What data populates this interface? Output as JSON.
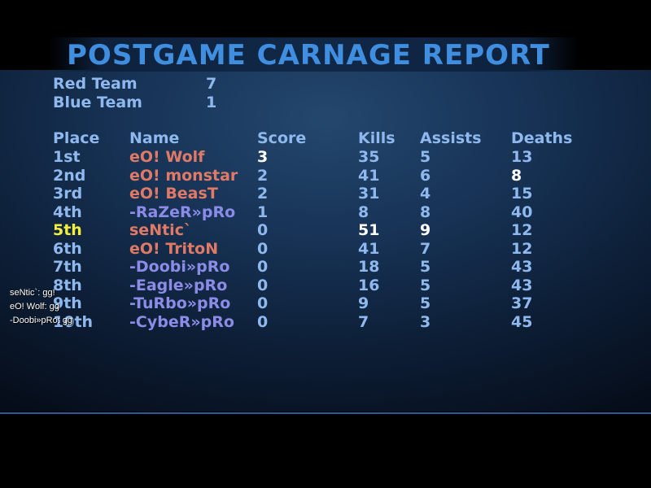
{
  "title": "POSTGAME CARNAGE REPORT",
  "teams": [
    {
      "name": "Red Team",
      "score": "7"
    },
    {
      "name": "Blue Team",
      "score": "1"
    }
  ],
  "headers": {
    "place": "Place",
    "name": "Name",
    "score": "Score",
    "kills": "Kills",
    "assists": "Assists",
    "deaths": "Deaths"
  },
  "rows": [
    {
      "place": "1st",
      "name": "eO! Wolf",
      "score": "3",
      "kills": "35",
      "assists": "5",
      "deaths": "13",
      "team": "red",
      "highlight": false,
      "best": [
        "score"
      ]
    },
    {
      "place": "2nd",
      "name": "eO! monstar",
      "score": "2",
      "kills": "41",
      "assists": "6",
      "deaths": "8",
      "team": "red",
      "highlight": false,
      "best": [
        "deaths"
      ]
    },
    {
      "place": "3rd",
      "name": "eO! BeasT",
      "score": "2",
      "kills": "31",
      "assists": "4",
      "deaths": "15",
      "team": "red",
      "highlight": false,
      "best": []
    },
    {
      "place": "4th",
      "name": "-RaZeR»pRo",
      "score": "1",
      "kills": "8",
      "assists": "8",
      "deaths": "40",
      "team": "blue",
      "highlight": false,
      "best": []
    },
    {
      "place": "5th",
      "name": "seNtic`",
      "score": "0",
      "kills": "51",
      "assists": "9",
      "deaths": "12",
      "team": "red",
      "highlight": true,
      "best": [
        "kills",
        "assists"
      ]
    },
    {
      "place": "6th",
      "name": "eO! TritoN",
      "score": "0",
      "kills": "41",
      "assists": "7",
      "deaths": "12",
      "team": "red",
      "highlight": false,
      "best": []
    },
    {
      "place": "7th",
      "name": "-Doobi»pRo",
      "score": "0",
      "kills": "18",
      "assists": "5",
      "deaths": "43",
      "team": "blue",
      "highlight": false,
      "best": []
    },
    {
      "place": "8th",
      "name": "-Eagle»pRo",
      "score": "0",
      "kills": "16",
      "assists": "5",
      "deaths": "43",
      "team": "blue",
      "highlight": false,
      "best": []
    },
    {
      "place": "9th",
      "name": "-TuRbo»pRo",
      "score": "0",
      "kills": "9",
      "assists": "5",
      "deaths": "37",
      "team": "blue",
      "highlight": false,
      "best": []
    },
    {
      "place": "10th",
      "name": "-CybeR»pRo",
      "score": "0",
      "kills": "7",
      "assists": "3",
      "deaths": "45",
      "team": "blue",
      "highlight": false,
      "best": []
    }
  ],
  "chat": [
    "seNtic`: gg!",
    "eO! Wolf: gg",
    "-Doobi»pRo: gg"
  ],
  "colors": {
    "red_team": "#e07a66",
    "blue_team": "#8c8ce8",
    "highlight": "#f4ee3c",
    "label": "#8fb9ee",
    "title": "#3f8ee0",
    "best_stat": "#ffffff"
  }
}
